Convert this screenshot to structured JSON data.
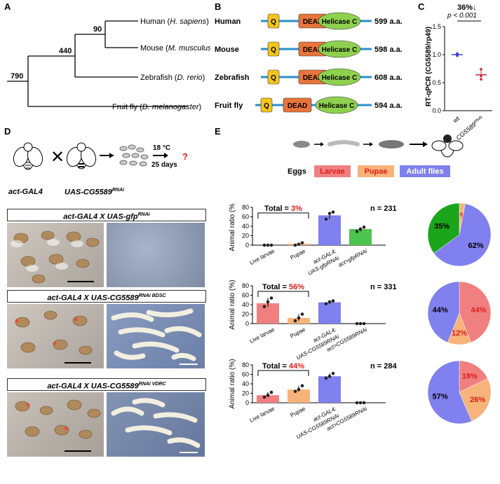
{
  "panels": {
    "A": "A",
    "B": "B",
    "C": "C",
    "D": "D",
    "E": "E"
  },
  "panelA": {
    "species": [
      {
        "common": "Human",
        "sci": "H. sapiens"
      },
      {
        "common": "Mouse",
        "sci": "M. musculus"
      },
      {
        "common": "Zebrafish",
        "sci": "D. rerio"
      },
      {
        "common": "Fruit fly",
        "sci": "D. melanogaster"
      }
    ],
    "nodes": [
      "90",
      "440",
      "790"
    ]
  },
  "panelB": {
    "domains": {
      "q": "Q",
      "dead": "DEAD",
      "helicase": "Helicase C"
    },
    "rows": [
      {
        "name": "Human",
        "length": "599 a.a."
      },
      {
        "name": "Mouse",
        "length": "598 a.a."
      },
      {
        "name": "Zebrafish",
        "length": "608 a.a."
      },
      {
        "name": "Fruit fly",
        "length": "594 a.a."
      }
    ],
    "colors": {
      "q": "#f5c518",
      "dead": "#e8743b",
      "helicase": "#8fd14f",
      "line": "#2a8fc9"
    }
  },
  "panelC": {
    "pct": "36%↓",
    "pvalue": "p < 0.001",
    "ylabel": "RT-qPCR (CG5589/rp49)",
    "yticks": [
      "0.0",
      "0.5",
      "1.0",
      "1.5"
    ],
    "xlabels": [
      "wt",
      "CG5589RNAi"
    ]
  },
  "panelD": {
    "cross": {
      "temp": "18 °C",
      "days": "25 days",
      "q": "?",
      "left": "act-GAL4",
      "right": "UAS-CG5589RNAi",
      "times": "✕"
    },
    "photoTitles": [
      "act-GAL4 X UAS-gfpRNAi",
      "act-GAL4 X UAS-CG5589RNAi BDSC",
      "act-GAL4 X UAS-CG5589RNAi VDRC"
    ]
  },
  "panelE": {
    "stages": [
      "Eggs",
      "Larvae",
      "Pupae",
      "Adult flies"
    ],
    "stageColors": [
      "#ffffff",
      "#f08080",
      "#f7b37a",
      "#8080ee"
    ],
    "ylabel": "Animal ratio (%)",
    "yticks": [
      "0",
      "20",
      "40",
      "60",
      "80"
    ]
  },
  "chart_data": [
    {
      "type": "line",
      "title": "",
      "xlabel": "",
      "ylabel": "RT-qPCR (CG5589/rp49)",
      "categories": [
        "wt",
        "CG5589RNAi"
      ],
      "values": [
        1.0,
        0.64
      ],
      "ylim": [
        0,
        1.5
      ]
    },
    {
      "type": "bar",
      "title": "Total = 3%",
      "n": "n = 231",
      "ylabel": "Animal ratio (%)",
      "ylim": [
        0,
        80
      ],
      "categories": [
        "Live larvae",
        "Pupae",
        "act-GAL4; UAS-gfpRNAi",
        "act>gfpRNAi"
      ],
      "values": [
        0,
        3,
        63,
        34
      ]
    },
    {
      "type": "pie",
      "labels": [
        "35%",
        "3%",
        "62%"
      ],
      "values": [
        35,
        3,
        62
      ]
    },
    {
      "type": "bar",
      "title": "Total = 56%",
      "n": "n = 331",
      "ylabel": "Animal ratio (%)",
      "ylim": [
        0,
        80
      ],
      "categories": [
        "Live larvae",
        "Pupae",
        "act-GAL4; UAS-CG5589RNAi",
        "act>CG5589RNAi"
      ],
      "values": [
        43,
        12,
        45,
        0
      ]
    },
    {
      "type": "pie",
      "labels": [
        "44%",
        "44%",
        "12%"
      ],
      "values": [
        44,
        44,
        12
      ]
    },
    {
      "type": "bar",
      "title": "Total = 44%",
      "n": "n = 284",
      "ylabel": "Animal ratio (%)",
      "ylim": [
        0,
        80
      ],
      "categories": [
        "Live larvae",
        "Pupae",
        "act-GAL4; UAS-CG5589RNAi",
        "act>CG5589RNAi"
      ],
      "values": [
        16,
        28,
        56,
        0
      ]
    },
    {
      "type": "pie",
      "labels": [
        "18%",
        "26%",
        "57%"
      ],
      "values": [
        18,
        26,
        57
      ]
    }
  ]
}
